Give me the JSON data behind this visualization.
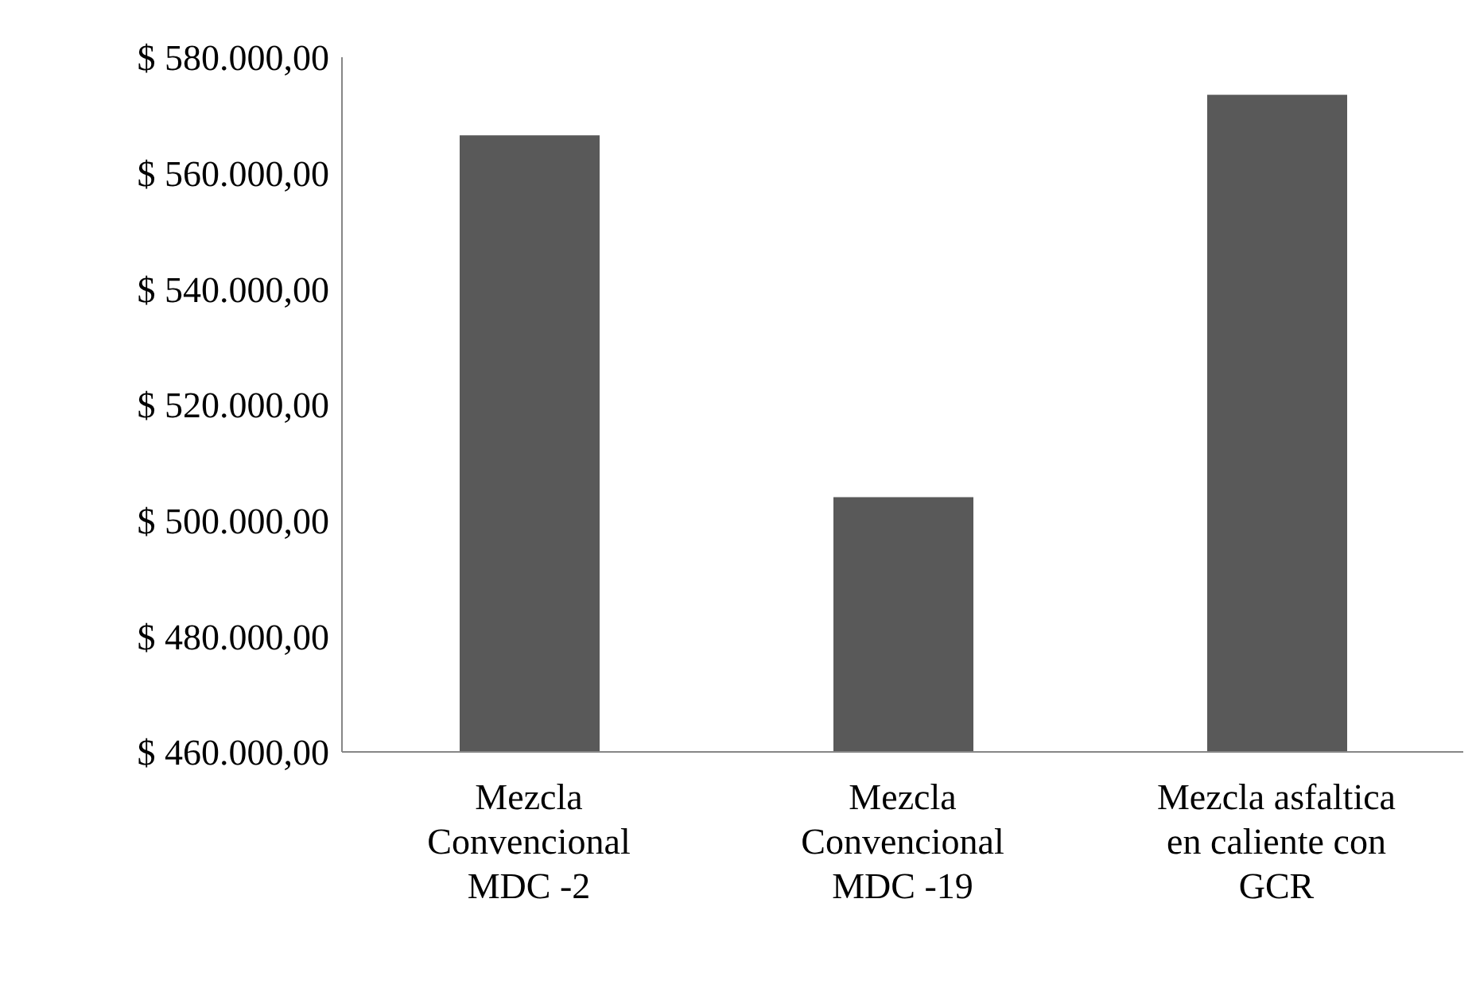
{
  "chart_data": {
    "type": "bar",
    "categories": [
      "Mezcla Convencional MDC -2",
      "Mezcla Convencional MDC -19",
      "Mezcla asfaltica en caliente con GCR"
    ],
    "values": [
      566500,
      504000,
      573500
    ],
    "color": "#595959",
    "ylim": [
      460000,
      580000
    ],
    "yticks": [
      {
        "value": 460000,
        "label": "$ 460.000,00"
      },
      {
        "value": 480000,
        "label": "$ 480.000,00"
      },
      {
        "value": 500000,
        "label": "$ 500.000,00"
      },
      {
        "value": 520000,
        "label": "$ 520.000,00"
      },
      {
        "value": 540000,
        "label": "$ 540.000,00"
      },
      {
        "value": 560000,
        "label": "$ 560.000,00"
      },
      {
        "value": 580000,
        "label": "$ 580.000,00"
      }
    ],
    "grid": false,
    "legend": false
  }
}
